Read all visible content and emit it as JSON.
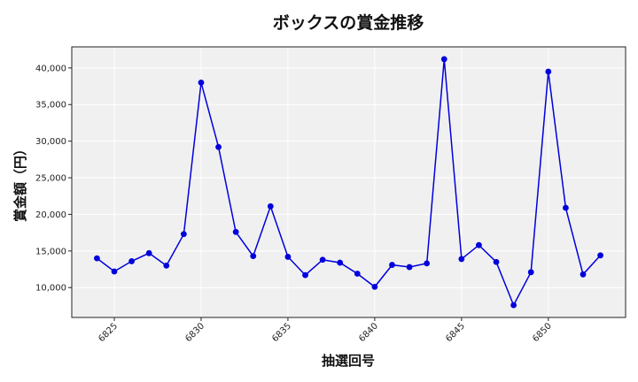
{
  "chart_data": {
    "type": "line",
    "title": "ボックスの賞金推移",
    "xlabel": "抽選回号",
    "ylabel": "賞金額（円）",
    "x": [
      6824,
      6825,
      6826,
      6827,
      6828,
      6829,
      6830,
      6831,
      6832,
      6833,
      6834,
      6835,
      6836,
      6837,
      6838,
      6839,
      6840,
      6841,
      6842,
      6843,
      6844,
      6845,
      6846,
      6847,
      6848,
      6849,
      6850,
      6851,
      6852,
      6853
    ],
    "series": [
      {
        "values": [
          14000,
          12200,
          13600,
          14700,
          13000,
          17300,
          38000,
          29200,
          17600,
          14300,
          21100,
          14200,
          11700,
          13800,
          13400,
          11900,
          10100,
          13100,
          12800,
          13300,
          41200,
          13900,
          15800,
          13500,
          7600,
          12100,
          39500,
          20900,
          11800,
          14400
        ],
        "color": "#0000dd"
      }
    ],
    "xticks": [
      6825,
      6830,
      6835,
      6840,
      6845,
      6850
    ],
    "yticks": [
      10000,
      15000,
      20000,
      25000,
      30000,
      35000,
      40000
    ],
    "ytick_labels": [
      "10,000",
      "15,000",
      "20,000",
      "25,000",
      "30,000",
      "35,000",
      "40,000"
    ],
    "xlim": [
      6822.55,
      6854.45
    ],
    "ylim": [
      5920,
      42880
    ],
    "grid": true,
    "legend": "none"
  }
}
